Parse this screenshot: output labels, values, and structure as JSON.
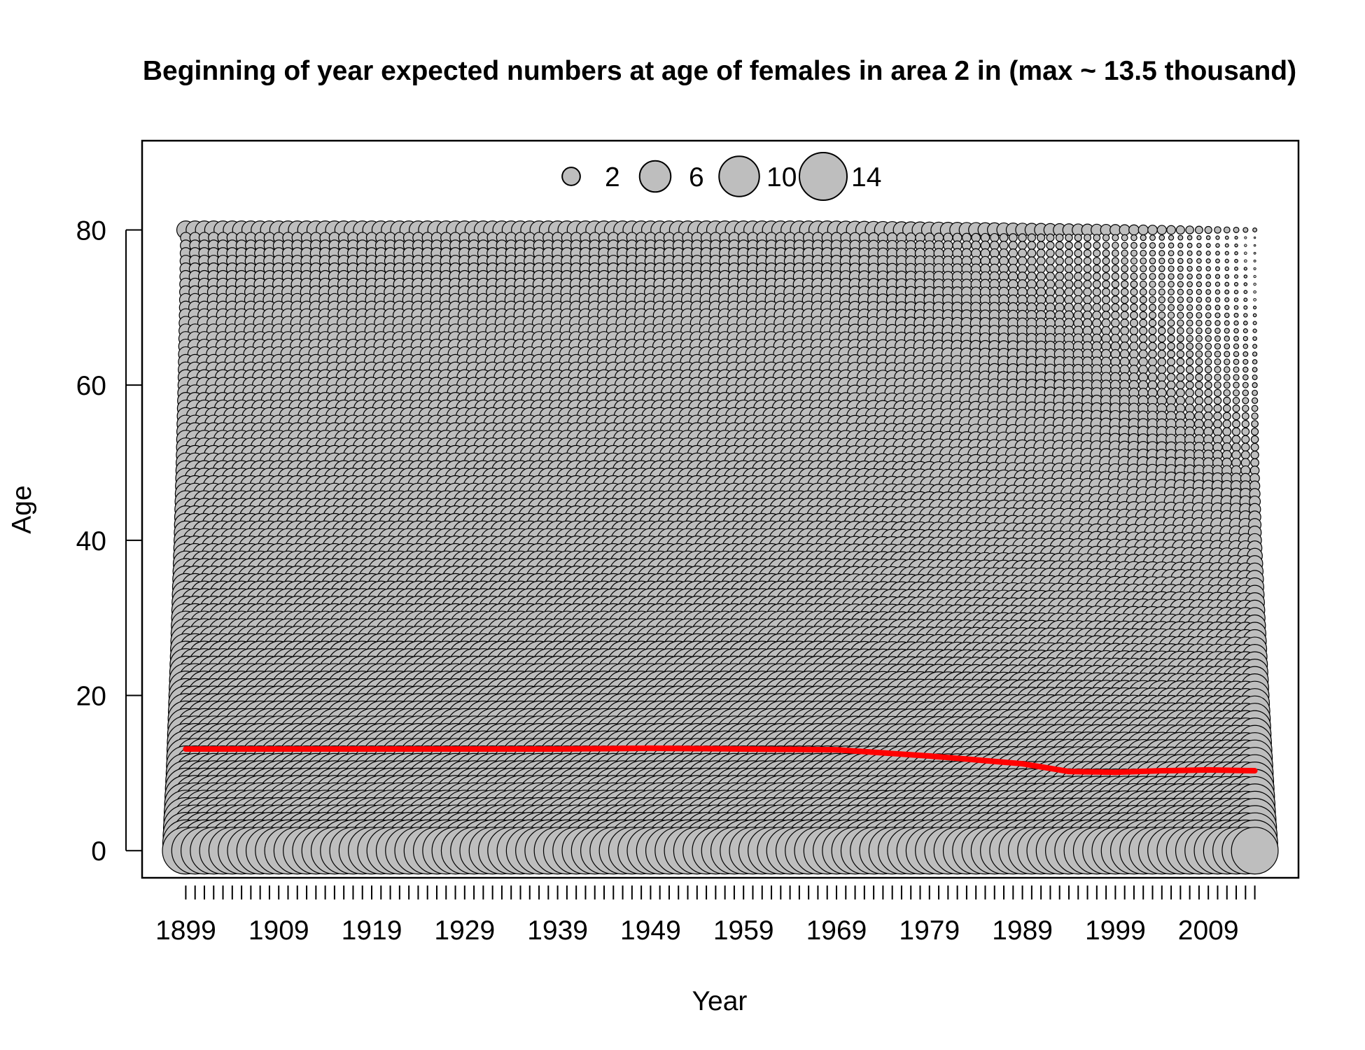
{
  "chart_data": {
    "type": "scatter",
    "subtype": "bubble",
    "title": "Beginning of year expected numbers at age of females in area 2 in (max ~ 13.5 thousand)",
    "xlabel": "Year",
    "ylabel": "Age",
    "x_range": [
      1899,
      2014
    ],
    "y_range": [
      0,
      80
    ],
    "ylim": [
      -3.5,
      91.5
    ],
    "xlim": [
      1894.3,
      2018.7
    ],
    "x_tick_labels": [
      "1899",
      "1909",
      "1919",
      "1929",
      "1939",
      "1949",
      "1959",
      "1969",
      "1979",
      "1989",
      "1999",
      "2009"
    ],
    "y_tick_labels": [
      "0",
      "20",
      "40",
      "60",
      "80"
    ],
    "max_value_thousands": 13.5,
    "bubble_fill": "#bebebe",
    "bubble_stroke": "#000000",
    "legend": {
      "placement": "top",
      "entries": [
        {
          "label": "2",
          "value": 2
        },
        {
          "label": "6",
          "value": 6
        },
        {
          "label": "10",
          "value": 10
        },
        {
          "label": "14",
          "value": 14
        }
      ]
    },
    "mean_age_series": {
      "color": "#ff0000",
      "x": [
        1899,
        1909,
        1919,
        1929,
        1939,
        1949,
        1959,
        1969,
        1974,
        1979,
        1984,
        1989,
        1994,
        1999,
        2004,
        2009,
        2014
      ],
      "y": [
        13.1,
        13.1,
        13.1,
        13.1,
        13.1,
        13.2,
        13.1,
        13.0,
        12.6,
        12.2,
        11.7,
        11.2,
        10.2,
        10.1,
        10.3,
        10.4,
        10.3
      ]
    },
    "numbers_at_age_thousands": {
      "description_ages": [
        0,
        5,
        10,
        15,
        20,
        25,
        30,
        40,
        50,
        60,
        70,
        79,
        80
      ],
      "early_period_1899_1968": [
        13.5,
        11.5,
        9.5,
        8.2,
        7.0,
        5.9,
        5.0,
        3.4,
        2.3,
        1.5,
        1.0,
        0.7,
        2.0
      ],
      "late_period_2014": [
        13.5,
        10.5,
        8.3,
        6.5,
        5.0,
        3.7,
        2.6,
        1.1,
        0.4,
        0.15,
        0.05,
        0.02,
        0.1
      ]
    }
  }
}
